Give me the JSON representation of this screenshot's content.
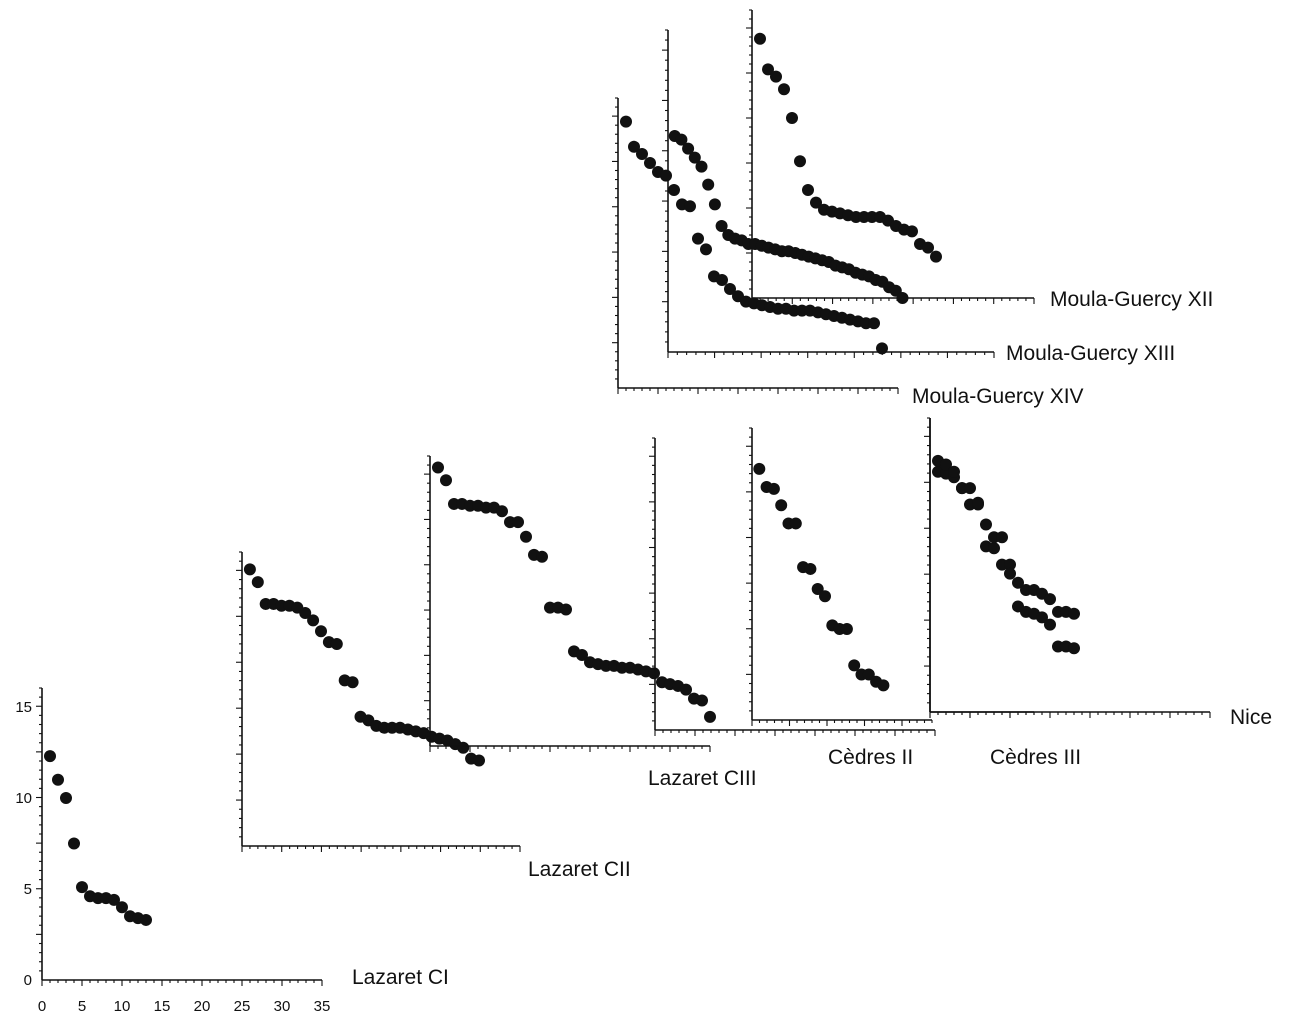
{
  "chart_data": [
    {
      "type": "scatter",
      "title": "Lazaret CI",
      "x_ticks": [
        "0",
        "5",
        "10",
        "15",
        "20",
        "25",
        "30",
        "35"
      ],
      "y_ticks": [
        "0",
        "5",
        "10",
        "15"
      ],
      "xlim": [
        0,
        35
      ],
      "ylim": [
        0,
        16
      ],
      "series": [
        {
          "x": [
            1,
            2,
            3,
            4,
            5,
            6,
            7,
            8,
            9,
            10,
            11,
            12,
            13
          ],
          "y": [
            12.3,
            11,
            10,
            7.5,
            5.1,
            4.6,
            4.5,
            4.5,
            4.4,
            4,
            3.5,
            3.4,
            3.3
          ]
        }
      ]
    },
    {
      "type": "scatter",
      "title": "Lazaret CII",
      "xlim": [
        0,
        35
      ],
      "ylim": [
        0,
        16
      ],
      "series": [
        {
          "x": [
            1,
            2,
            3,
            4,
            5,
            6,
            7,
            8,
            9,
            10,
            11,
            12,
            13,
            14,
            15,
            16,
            17,
            18,
            19,
            20,
            21,
            22,
            23,
            24,
            25,
            26,
            27,
            28,
            29,
            30
          ],
          "y": [
            15.2,
            14.5,
            13.3,
            13.3,
            13.2,
            13.2,
            13.1,
            12.8,
            12.4,
            11.8,
            11.2,
            11.1,
            9.1,
            9,
            7.1,
            6.9,
            6.6,
            6.5,
            6.5,
            6.5,
            6.4,
            6.3,
            6.2,
            6,
            5.9,
            5.8,
            5.6,
            5.4,
            4.8,
            4.7
          ]
        }
      ]
    },
    {
      "type": "scatter",
      "title": "Lazaret CIII",
      "xlim": [
        0,
        35
      ],
      "ylim": [
        0,
        16
      ],
      "series": [
        {
          "x": [
            1,
            2,
            3,
            4,
            5,
            6,
            7,
            8,
            9,
            10,
            11,
            12,
            13,
            14,
            15,
            16,
            17,
            18,
            19,
            20,
            21,
            22,
            23,
            24,
            25,
            26,
            27,
            28,
            29,
            30,
            31,
            32,
            33,
            34,
            35
          ],
          "y": [
            15.3,
            14.6,
            13.3,
            13.3,
            13.2,
            13.2,
            13.1,
            13.1,
            12.9,
            12.3,
            12.3,
            11.5,
            10.5,
            10.4,
            7.6,
            7.6,
            7.5,
            5.2,
            5,
            4.6,
            4.5,
            4.4,
            4.4,
            4.3,
            4.3,
            4.2,
            4.1,
            4,
            3.5,
            3.4,
            3.3,
            3.1,
            2.6,
            2.5,
            1.6
          ]
        }
      ]
    },
    {
      "type": "scatter",
      "title": "Cèdres II",
      "xlim": [
        0,
        35
      ],
      "ylim": [
        0,
        16
      ],
      "series": [
        {
          "x": [
            1,
            2,
            3,
            4,
            5,
            6,
            7,
            8,
            9,
            10,
            11,
            12,
            13,
            14,
            15,
            16,
            17,
            18
          ],
          "y": [
            13.8,
            12.8,
            12.7,
            11.8,
            10.8,
            10.8,
            8.4,
            8.3,
            7.2,
            6.8,
            5.2,
            5,
            5,
            3,
            2.5,
            2.5,
            2.1,
            1.9
          ]
        }
      ]
    },
    {
      "type": "scatter",
      "title": "Cèdres III",
      "xlim": [
        0,
        35
      ],
      "ylim": [
        0,
        16
      ],
      "series": [
        {
          "x": [
            1,
            2,
            3,
            4,
            5,
            6,
            7,
            8,
            9,
            10,
            11,
            12,
            13,
            14,
            15,
            16,
            17,
            18
          ],
          "y": [
            13.2,
            13.1,
            12.9,
            12.3,
            11.4,
            11.4,
            9.1,
            9,
            8.1,
            8.1,
            5.8,
            5.5,
            5.4,
            5.2,
            4.8,
            3.6,
            3.6,
            3.5
          ]
        }
      ]
    },
    {
      "type": "scatter",
      "title": "Nice",
      "xlim": [
        0,
        35
      ],
      "ylim": [
        0,
        16
      ],
      "series": [
        {
          "x": [
            1,
            2,
            3,
            4,
            5,
            6,
            7,
            8,
            9,
            10,
            11,
            12,
            13,
            14,
            15,
            16,
            17,
            18
          ],
          "y": [
            13.8,
            13.6,
            13.2,
            12.3,
            12.3,
            11.5,
            10.3,
            9.6,
            9.6,
            7.6,
            7.1,
            6.7,
            6.7,
            6.5,
            6.2,
            5.5,
            5.5,
            5.4
          ]
        }
      ]
    },
    {
      "type": "scatter",
      "title": "Moula-Guercy XII",
      "xlim": [
        0,
        35
      ],
      "ylim": [
        0,
        16
      ],
      "series": [
        {
          "x": [
            1,
            2,
            3,
            4,
            5,
            6,
            7,
            8,
            9,
            10,
            11,
            12,
            13,
            14,
            15,
            16,
            17,
            18,
            19,
            20,
            21,
            22,
            23
          ],
          "y": [
            14.4,
            12.7,
            12.3,
            11.6,
            10,
            7.6,
            6,
            5.3,
            4.9,
            4.8,
            4.7,
            4.6,
            4.5,
            4.5,
            4.5,
            4.5,
            4.3,
            4,
            3.8,
            3.7,
            3,
            2.8,
            2.3
          ]
        }
      ]
    },
    {
      "type": "scatter",
      "title": "Moula-Guercy XIII",
      "xlim": [
        0,
        35
      ],
      "ylim": [
        0,
        16
      ],
      "series": [
        {
          "x": [
            1,
            2,
            3,
            4,
            5,
            6,
            7,
            8,
            9,
            10,
            11,
            12,
            13,
            14,
            15,
            16,
            17,
            18,
            19,
            20,
            21,
            22,
            23,
            24,
            25,
            26,
            27,
            28,
            29,
            30,
            31,
            32,
            33,
            34,
            35
          ],
          "y": [
            12,
            11.8,
            11.3,
            10.8,
            10.3,
            9.3,
            8.2,
            7,
            6.5,
            6.3,
            6.2,
            6,
            6,
            5.9,
            5.8,
            5.7,
            5.6,
            5.6,
            5.5,
            5.4,
            5.3,
            5.2,
            5.1,
            5,
            4.8,
            4.7,
            4.6,
            4.4,
            4.3,
            4.2,
            4,
            3.9,
            3.6,
            3.4,
            3
          ]
        }
      ]
    },
    {
      "type": "scatter",
      "title": "Moula-Guercy XIV",
      "xlim": [
        0,
        35
      ],
      "ylim": [
        0,
        16
      ],
      "series": [
        {
          "x": [
            1,
            2,
            3,
            4,
            5,
            6,
            7,
            8,
            9,
            10,
            11,
            12,
            13,
            14,
            15,
            16,
            17,
            18,
            19,
            20,
            21,
            22,
            23,
            24,
            25,
            26,
            27,
            28,
            29,
            30,
            31,
            32,
            33
          ],
          "y": [
            14.8,
            13.4,
            13,
            12.5,
            12,
            11.8,
            11,
            10.2,
            10.1,
            8.3,
            7.7,
            6.2,
            6,
            5.5,
            5.1,
            4.8,
            4.7,
            4.6,
            4.5,
            4.4,
            4.4,
            4.3,
            4.3,
            4.3,
            4.2,
            4.1,
            4,
            3.9,
            3.8,
            3.7,
            3.6,
            3.6,
            2.2
          ]
        }
      ]
    }
  ]
}
